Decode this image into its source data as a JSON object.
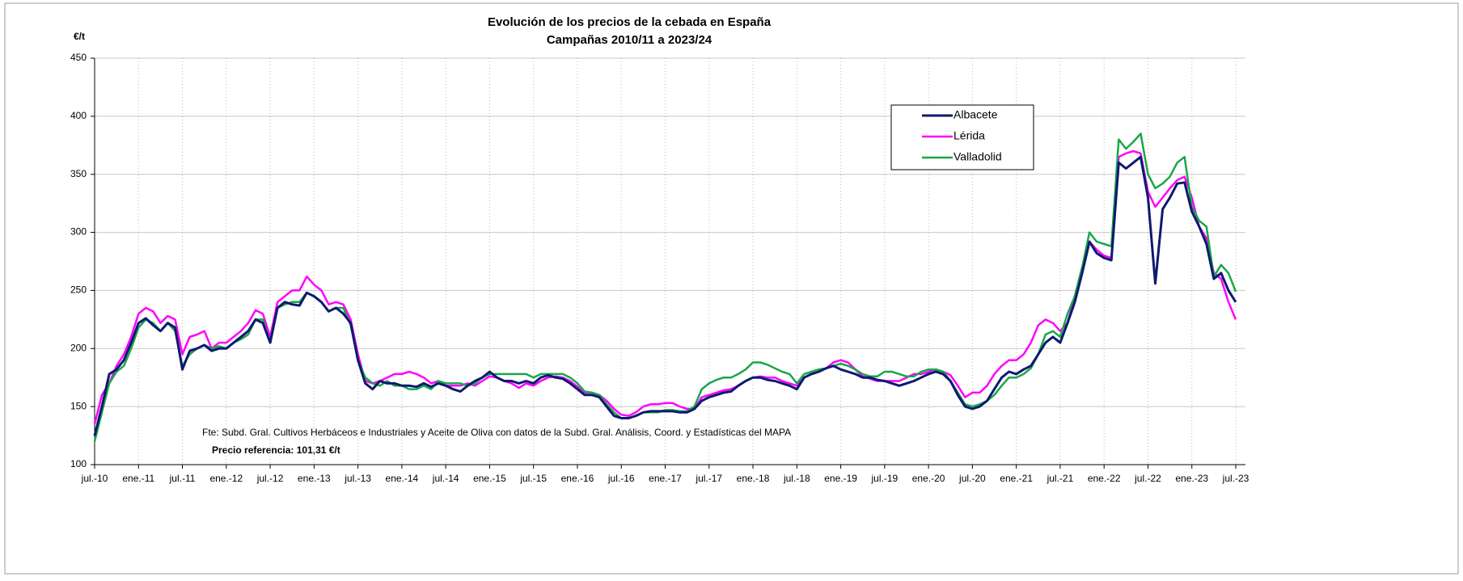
{
  "chart_data": {
    "type": "line",
    "title": "Evolución de los precios de la cebada en España",
    "subtitle": "Campañas 2010/11 a 2023/24",
    "y_label": "€/t",
    "source": "Fte: Subd. Gral. Cultivos Herbáceos e Industriales y Aceite de Oliva con datos de la Subd. Gral. Análisis, Coord. y Estadísticas del MAPA",
    "note": "Precio referencia: 101,31 €/t",
    "categories": [
      "jul.-10",
      null,
      null,
      null,
      null,
      null,
      "ene.-11",
      null,
      null,
      null,
      null,
      null,
      "jul.-11",
      null,
      null,
      null,
      null,
      null,
      "ene.-12",
      null,
      null,
      null,
      null,
      null,
      "jul.-12",
      null,
      null,
      null,
      null,
      null,
      "ene.-13",
      null,
      null,
      null,
      null,
      null,
      "jul.-13",
      null,
      null,
      null,
      null,
      null,
      "ene.-14",
      null,
      null,
      null,
      null,
      null,
      "jul.-14",
      null,
      null,
      null,
      null,
      null,
      "ene.-15",
      null,
      null,
      null,
      null,
      null,
      "jul.-15",
      null,
      null,
      null,
      null,
      null,
      "ene.-16",
      null,
      null,
      null,
      null,
      null,
      "jul.-16",
      null,
      null,
      null,
      null,
      null,
      "ene.-17",
      null,
      null,
      null,
      null,
      null,
      "jul.-17",
      null,
      null,
      null,
      null,
      null,
      "ene.-18",
      null,
      null,
      null,
      null,
      null,
      "jul.-18",
      null,
      null,
      null,
      null,
      null,
      "ene.-19",
      null,
      null,
      null,
      null,
      null,
      "jul.-19",
      null,
      null,
      null,
      null,
      null,
      "ene.-20",
      null,
      null,
      null,
      null,
      null,
      "jul.-20",
      null,
      null,
      null,
      null,
      null,
      "ene.-21",
      null,
      null,
      null,
      null,
      null,
      "jul.-21",
      null,
      null,
      null,
      null,
      null,
      "ene.-22",
      null,
      null,
      null,
      null,
      null,
      "jul.-22",
      null,
      null,
      null,
      null,
      null,
      "ene.-23",
      null,
      null,
      null,
      null,
      null,
      "jul.-23"
    ],
    "series": [
      {
        "name": "Albacete",
        "color": "#0d1a6e",
        "values": [
          125,
          150,
          178,
          182,
          190,
          205,
          222,
          226,
          220,
          215,
          222,
          218,
          182,
          198,
          200,
          203,
          198,
          200,
          200,
          205,
          210,
          215,
          225,
          222,
          205,
          235,
          240,
          238,
          237,
          248,
          245,
          240,
          232,
          235,
          230,
          222,
          190,
          170,
          165,
          172,
          170,
          170,
          168,
          168,
          167,
          170,
          167,
          170,
          168,
          165,
          163,
          168,
          172,
          175,
          180,
          175,
          172,
          172,
          170,
          172,
          170,
          175,
          177,
          175,
          174,
          170,
          165,
          160,
          160,
          158,
          150,
          142,
          140,
          140,
          142,
          145,
          146,
          146,
          146,
          146,
          145,
          145,
          148,
          155,
          158,
          160,
          162,
          163,
          168,
          172,
          175,
          175,
          173,
          172,
          170,
          168,
          165,
          175,
          178,
          180,
          183,
          185,
          182,
          180,
          178,
          175,
          175,
          173,
          172,
          170,
          168,
          170,
          172,
          175,
          178,
          180,
          178,
          172,
          160,
          150,
          148,
          150,
          155,
          165,
          175,
          180,
          178,
          182,
          185,
          195,
          205,
          210,
          205,
          222,
          240,
          265,
          292,
          282,
          278,
          276,
          360,
          355,
          360,
          365,
          330,
          256,
          320,
          330,
          342,
          343,
          318,
          305,
          290,
          260,
          265,
          250,
          240
        ]
      },
      {
        "name": "Lérida",
        "color": "#ff00ff",
        "values": [
          135,
          160,
          170,
          185,
          195,
          210,
          230,
          235,
          232,
          222,
          228,
          225,
          195,
          210,
          212,
          215,
          200,
          205,
          205,
          210,
          215,
          222,
          233,
          230,
          210,
          240,
          245,
          250,
          250,
          262,
          255,
          250,
          238,
          240,
          238,
          225,
          195,
          172,
          170,
          172,
          175,
          178,
          178,
          180,
          178,
          175,
          170,
          172,
          168,
          168,
          168,
          170,
          168,
          172,
          176,
          175,
          172,
          170,
          166,
          170,
          168,
          172,
          175,
          176,
          175,
          172,
          167,
          162,
          162,
          160,
          155,
          148,
          143,
          142,
          145,
          150,
          152,
          152,
          153,
          153,
          150,
          148,
          148,
          158,
          160,
          162,
          164,
          165,
          168,
          172,
          175,
          176,
          175,
          175,
          172,
          170,
          168,
          175,
          178,
          180,
          183,
          188,
          190,
          188,
          182,
          176,
          174,
          172,
          172,
          172,
          172,
          175,
          178,
          178,
          180,
          182,
          180,
          177,
          168,
          158,
          162,
          162,
          168,
          178,
          185,
          190,
          190,
          195,
          205,
          220,
          225,
          222,
          215,
          222,
          245,
          270,
          292,
          285,
          280,
          278,
          365,
          368,
          370,
          368,
          335,
          322,
          330,
          338,
          345,
          348,
          330,
          305,
          295,
          265,
          260,
          240,
          225
        ]
      },
      {
        "name": "Valladolid",
        "color": "#1aa64a",
        "values": [
          120,
          145,
          170,
          180,
          185,
          200,
          218,
          225,
          222,
          215,
          222,
          215,
          185,
          195,
          200,
          203,
          200,
          202,
          200,
          205,
          208,
          212,
          225,
          225,
          205,
          235,
          238,
          240,
          240,
          248,
          245,
          240,
          232,
          235,
          235,
          220,
          190,
          175,
          170,
          168,
          172,
          168,
          168,
          165,
          165,
          168,
          165,
          172,
          170,
          170,
          170,
          168,
          170,
          175,
          178,
          178,
          178,
          178,
          178,
          178,
          175,
          178,
          178,
          178,
          178,
          175,
          170,
          163,
          162,
          160,
          152,
          145,
          140,
          140,
          142,
          145,
          145,
          145,
          147,
          147,
          146,
          146,
          150,
          165,
          170,
          173,
          175,
          175,
          178,
          182,
          188,
          188,
          186,
          183,
          180,
          178,
          170,
          178,
          180,
          182,
          183,
          185,
          187,
          185,
          182,
          178,
          176,
          176,
          180,
          180,
          178,
          176,
          176,
          180,
          182,
          182,
          180,
          172,
          162,
          152,
          150,
          152,
          155,
          160,
          168,
          175,
          175,
          178,
          183,
          195,
          212,
          215,
          210,
          230,
          245,
          270,
          300,
          292,
          290,
          288,
          380,
          372,
          378,
          385,
          350,
          338,
          342,
          348,
          360,
          365,
          322,
          310,
          305,
          262,
          272,
          265,
          249
        ]
      }
    ],
    "ylim": [
      100,
      450
    ],
    "yticks": [
      100,
      150,
      200,
      250,
      300,
      350,
      400,
      450
    ],
    "grid": true,
    "legend": "upper right"
  }
}
